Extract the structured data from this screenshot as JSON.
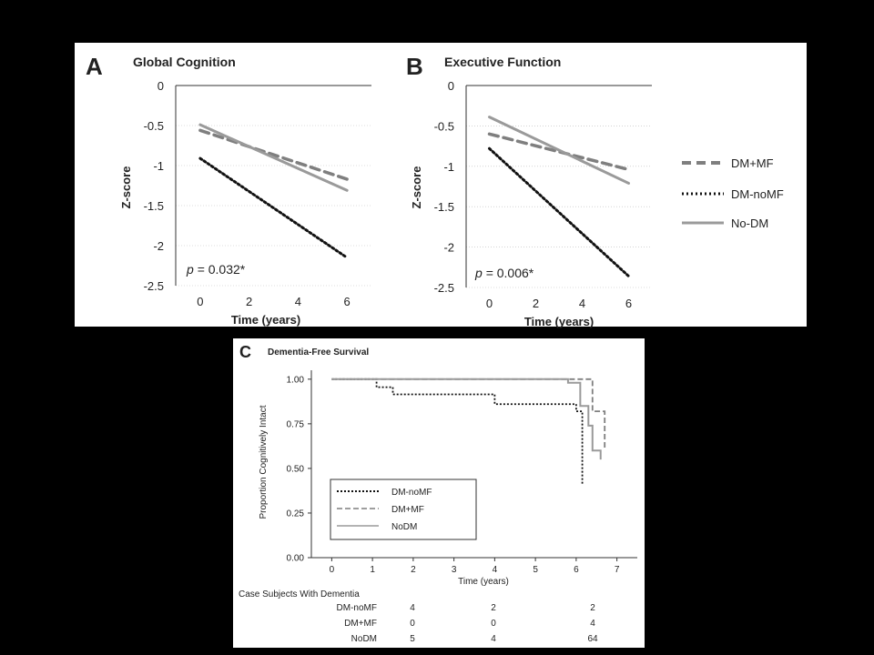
{
  "panel_a": {
    "letter": "A",
    "title": "Global Cognition",
    "ylabel": "Z-score",
    "xlabel": "Time (years)",
    "pvalue_text": "= 0.032*",
    "pvalue_symbol": "p"
  },
  "panel_b": {
    "letter": "B",
    "title": "Executive Function",
    "ylabel": "Z-score",
    "xlabel": "Time (years)",
    "pvalue_text": "= 0.006*",
    "pvalue_symbol": "p"
  },
  "legend_ab": [
    "DM+MF",
    "DM-noMF",
    "No-DM"
  ],
  "panel_c": {
    "letter": "C",
    "title": "Dementia-Free Survival",
    "ylabel": "Proportion Cognitively Intact",
    "xlabel": "Time (years)",
    "legend": [
      "DM-noMF",
      "DM+MF",
      "NoDM"
    ],
    "table_title": "Case Subjects With Dementia",
    "table_rows": [
      {
        "label": "DM-noMF",
        "values": [
          "4",
          "2",
          "2"
        ]
      },
      {
        "label": "DM+MF",
        "values": [
          "0",
          "0",
          "4"
        ]
      },
      {
        "label": "NoDM",
        "values": [
          "5",
          "4",
          "64"
        ]
      }
    ]
  },
  "colors": {
    "dm_mf": "#7f7f7f",
    "dm_nomf": "#111111",
    "no_dm": "#9a9a9a"
  },
  "chart_data": [
    {
      "type": "line",
      "title": "Global Cognition",
      "xlabel": "Time (years)",
      "ylabel": "Z-score",
      "xlim": [
        -1,
        7
      ],
      "ylim": [
        -2.5,
        0
      ],
      "xticks": [
        0,
        2,
        4,
        6
      ],
      "yticks": [
        0,
        -0.5,
        -1,
        -1.5,
        -2,
        -2.5
      ],
      "series": [
        {
          "name": "DM+MF",
          "x": [
            0,
            6
          ],
          "y": [
            -0.56,
            -1.17
          ]
        },
        {
          "name": "DM-noMF",
          "x": [
            0,
            6
          ],
          "y": [
            -0.91,
            -2.15
          ]
        },
        {
          "name": "No-DM",
          "x": [
            0,
            6
          ],
          "y": [
            -0.49,
            -1.31
          ]
        }
      ]
    },
    {
      "type": "line",
      "title": "Executive Function",
      "xlabel": "Time (years)",
      "ylabel": "Z-score",
      "xlim": [
        -1,
        7
      ],
      "ylim": [
        -2.5,
        0
      ],
      "xticks": [
        0,
        2,
        4,
        6
      ],
      "yticks": [
        0,
        -0.5,
        -1,
        -1.5,
        -2,
        -2.5
      ],
      "series": [
        {
          "name": "DM+MF",
          "x": [
            0,
            6
          ],
          "y": [
            -0.6,
            -1.04
          ]
        },
        {
          "name": "DM-noMF",
          "x": [
            0,
            6
          ],
          "y": [
            -0.78,
            -2.36
          ]
        },
        {
          "name": "No-DM",
          "x": [
            0,
            6
          ],
          "y": [
            -0.39,
            -1.21
          ]
        }
      ]
    },
    {
      "type": "line",
      "title": "Dementia-Free Survival",
      "xlabel": "Time (years)",
      "ylabel": "Proportion Cognitively Intact",
      "xlim": [
        -0.5,
        7.5
      ],
      "ylim": [
        0,
        1.05
      ],
      "xticks": [
        0,
        1,
        2,
        3,
        4,
        5,
        6,
        7
      ],
      "yticks": [
        "0.00",
        "0.25",
        "0.50",
        "0.75",
        "1.00"
      ],
      "series": [
        {
          "name": "DM-noMF",
          "x": [
            0,
            1,
            1.1,
            1.5,
            4.0,
            6.0,
            6.15
          ],
          "y": [
            1.0,
            1.0,
            0.955,
            0.915,
            0.86,
            0.82,
            0.41
          ]
        },
        {
          "name": "DM+MF",
          "x": [
            0,
            6.2,
            6.4,
            6.7
          ],
          "y": [
            1.0,
            1.0,
            0.82,
            0.61
          ]
        },
        {
          "name": "NoDM",
          "x": [
            0,
            5.8,
            6.1,
            6.3,
            6.4,
            6.6
          ],
          "y": [
            1.0,
            0.98,
            0.85,
            0.74,
            0.6,
            0.55
          ]
        }
      ]
    }
  ]
}
